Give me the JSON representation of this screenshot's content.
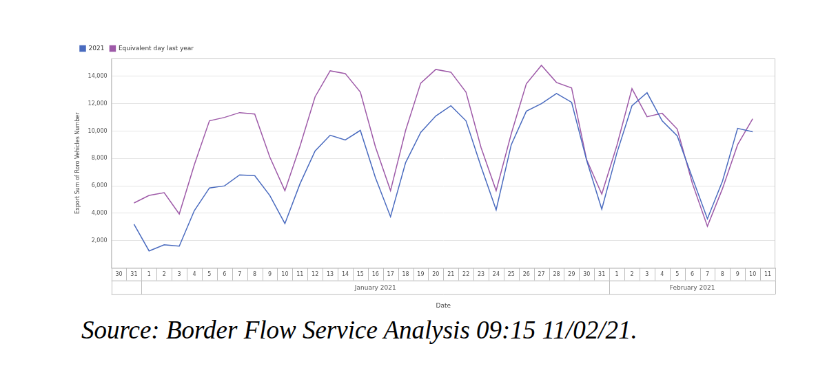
{
  "chart_data": {
    "type": "line",
    "caption": "Source: Border Flow Service Analysis 09:15 11/02/21.",
    "x_label": "Date",
    "y_label": "Export Sum of Roro Vehicles Number",
    "categories": [
      30,
      31,
      1,
      2,
      3,
      4,
      5,
      6,
      7,
      8,
      9,
      10,
      11,
      12,
      13,
      14,
      15,
      16,
      17,
      18,
      19,
      20,
      21,
      22,
      23,
      24,
      25,
      26,
      27,
      28,
      29,
      30,
      31,
      1,
      2,
      3,
      4,
      5,
      6,
      7,
      8,
      9,
      10,
      11
    ],
    "x_group_labels": [
      null,
      "January 2021",
      "February 2021"
    ],
    "series": [
      {
        "name": "2021",
        "color": "#4a6bbf",
        "values": [
          null,
          3200,
          1250,
          1700,
          1600,
          4200,
          5850,
          6000,
          6800,
          6750,
          5300,
          3250,
          6150,
          8550,
          9700,
          9350,
          10050,
          6600,
          3750,
          7700,
          9900,
          11100,
          11850,
          10750,
          7400,
          4250,
          9000,
          11450,
          12000,
          12750,
          12100,
          7850,
          4300,
          8400,
          11850,
          12800,
          10750,
          9650,
          6600,
          3600,
          6350,
          10200,
          9950,
          null
        ]
      },
      {
        "name": "Equivalent day last year",
        "color": "#9e5aa8",
        "values": [
          null,
          4750,
          5300,
          5500,
          3950,
          7550,
          10750,
          11000,
          11350,
          11250,
          8100,
          5650,
          8900,
          12500,
          14400,
          14200,
          12850,
          8850,
          5650,
          10050,
          13500,
          14500,
          14300,
          12850,
          8800,
          5650,
          9800,
          13450,
          14800,
          13550,
          13150,
          7900,
          5400,
          8950,
          13100,
          11050,
          11300,
          10150,
          6200,
          3050,
          5800,
          9000,
          10900,
          null
        ]
      }
    ],
    "ylim": [
      0,
      15300
    ],
    "yticks": [
      {
        "value": 2000,
        "label": "2,000"
      },
      {
        "value": 4000,
        "label": "4,000"
      },
      {
        "value": 6000,
        "label": "6,000"
      },
      {
        "value": 8000,
        "label": "8,000"
      },
      {
        "value": 10000,
        "label": "10,000"
      },
      {
        "value": 12000,
        "label": "12,000"
      },
      {
        "value": 14000,
        "label": "14,000"
      }
    ],
    "grid": true,
    "legend": "top-left",
    "marker": "none",
    "line_style": "solid"
  }
}
